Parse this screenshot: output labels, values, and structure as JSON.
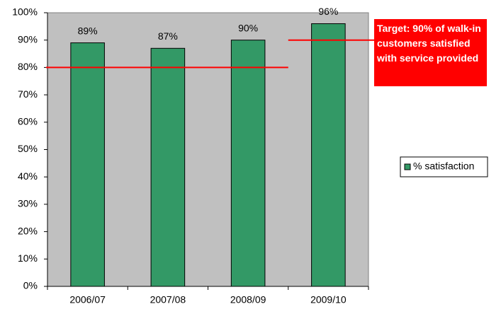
{
  "chart_data": {
    "type": "bar",
    "categories": [
      "2006/07",
      "2007/08",
      "2008/09",
      "2009/10"
    ],
    "series": [
      {
        "name": "% satisfaction",
        "color": "#339966",
        "values": [
          89,
          87,
          90,
          96
        ],
        "value_labels": [
          "89%",
          "87%",
          "90%",
          "96%"
        ]
      }
    ],
    "targets": [
      80,
      80,
      80,
      90
    ],
    "target_color": "#ff0000",
    "annotation": "Target: 90% of walk-in customers satisfied with service provided",
    "ylim": [
      0,
      100
    ],
    "yticks": [
      {
        "value": 0,
        "label": "0%"
      },
      {
        "value": 10,
        "label": "10%"
      },
      {
        "value": 20,
        "label": "20%"
      },
      {
        "value": 30,
        "label": "30%"
      },
      {
        "value": 40,
        "label": "40%"
      },
      {
        "value": 50,
        "label": "50%"
      },
      {
        "value": 60,
        "label": "60%"
      },
      {
        "value": 70,
        "label": "70%"
      },
      {
        "value": 80,
        "label": "80%"
      },
      {
        "value": 90,
        "label": "90%"
      },
      {
        "value": 100,
        "label": "100%"
      }
    ],
    "grid": false,
    "plot_background": "#c0c0c0",
    "legend": "right"
  }
}
